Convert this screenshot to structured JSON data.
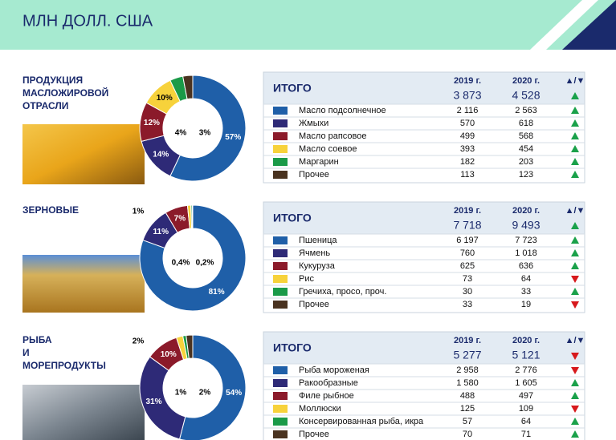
{
  "header": {
    "title": "МЛН ДОЛЛ. США"
  },
  "sections": [
    {
      "title": "ПРОДУКЦИЯ МАСЛОЖИРОВОЙ ОТРАСЛИ",
      "donut": {
        "slices": [
          {
            "value": 57,
            "label": "57%",
            "color": "#1f5fa8"
          },
          {
            "value": 14,
            "label": "14%",
            "color": "#2e2a77"
          },
          {
            "value": 12,
            "label": "12%",
            "color": "#8b1a2a"
          },
          {
            "value": 10,
            "label": "10%",
            "color": "#f7d23b"
          },
          {
            "value": 4,
            "label": "4%",
            "color": "#1a9a48"
          },
          {
            "value": 3,
            "label": "3%",
            "color": "#4a3320"
          }
        ]
      },
      "table": {
        "total_label": "ИТОГО",
        "col_2019": "2019 г.",
        "col_2020": "2020 г.",
        "trend_header": "▲/▼",
        "total_2019": "3 873",
        "total_2020": "4 528",
        "total_trend": "up",
        "rows": [
          {
            "color": "#1f5fa8",
            "name": "Масло подсолнечное",
            "v2019": "2 116",
            "v2020": "2 563",
            "trend": "up"
          },
          {
            "color": "#2e2a77",
            "name": "Жмыхи",
            "v2019": "570",
            "v2020": "618",
            "trend": "up"
          },
          {
            "color": "#8b1a2a",
            "name": "Масло рапсовое",
            "v2019": "499",
            "v2020": "568",
            "trend": "up"
          },
          {
            "color": "#f7d23b",
            "name": "Масло соевое",
            "v2019": "393",
            "v2020": "454",
            "trend": "up"
          },
          {
            "color": "#1a9a48",
            "name": "Маргарин",
            "v2019": "182",
            "v2020": "203",
            "trend": "up"
          },
          {
            "color": "#4a3320",
            "name": "Прочее",
            "v2019": "113",
            "v2020": "123",
            "trend": "up"
          }
        ]
      }
    },
    {
      "title": "ЗЕРНОВЫЕ",
      "donut": {
        "slices": [
          {
            "value": 81,
            "label": "81%",
            "color": "#1f5fa8"
          },
          {
            "value": 11,
            "label": "11%",
            "color": "#2e2a77"
          },
          {
            "value": 7,
            "label": "7%",
            "color": "#8b1a2a"
          },
          {
            "value": 1,
            "label": "1%",
            "color": "#f7d23b"
          },
          {
            "value": 0.4,
            "label": "0,4%",
            "color": "#1a9a48"
          },
          {
            "value": 0.2,
            "label": "0,2%",
            "color": "#4a3320"
          }
        ]
      },
      "table": {
        "total_label": "ИТОГО",
        "col_2019": "2019 г.",
        "col_2020": "2020 г.",
        "trend_header": "▲/▼",
        "total_2019": "7 718",
        "total_2020": "9 493",
        "total_trend": "up",
        "rows": [
          {
            "color": "#1f5fa8",
            "name": "Пшеница",
            "v2019": "6 197",
            "v2020": "7 723",
            "trend": "up"
          },
          {
            "color": "#2e2a77",
            "name": "Ячмень",
            "v2019": "760",
            "v2020": "1 018",
            "trend": "up"
          },
          {
            "color": "#8b1a2a",
            "name": "Кукуруза",
            "v2019": "625",
            "v2020": "636",
            "trend": "up"
          },
          {
            "color": "#f7d23b",
            "name": "Рис",
            "v2019": "73",
            "v2020": "64",
            "trend": "down"
          },
          {
            "color": "#1a9a48",
            "name": "Гречиха, просо, проч.",
            "v2019": "30",
            "v2020": "33",
            "trend": "up"
          },
          {
            "color": "#4a3320",
            "name": "Прочее",
            "v2019": "33",
            "v2020": "19",
            "trend": "down"
          }
        ]
      }
    },
    {
      "title": "РЫБА И МОРЕПРОДУКТЫ",
      "donut": {
        "slices": [
          {
            "value": 54,
            "label": "54%",
            "color": "#1f5fa8"
          },
          {
            "value": 31,
            "label": "31%",
            "color": "#2e2a77"
          },
          {
            "value": 10,
            "label": "10%",
            "color": "#8b1a2a"
          },
          {
            "value": 2,
            "label": "2%",
            "color": "#f7d23b"
          },
          {
            "value": 1,
            "label": "1%",
            "color": "#1a9a48"
          },
          {
            "value": 2,
            "label": "2%",
            "color": "#4a3320"
          }
        ]
      },
      "table": {
        "total_label": "ИТОГО",
        "col_2019": "2019 г.",
        "col_2020": "2020 г.",
        "trend_header": "▲/▼",
        "total_2019": "5 277",
        "total_2020": "5 121",
        "total_trend": "down",
        "rows": [
          {
            "color": "#1f5fa8",
            "name": "Рыба мороженая",
            "v2019": "2 958",
            "v2020": "2 776",
            "trend": "down"
          },
          {
            "color": "#2e2a77",
            "name": "Ракообразные",
            "v2019": "1 580",
            "v2020": "1 605",
            "trend": "up"
          },
          {
            "color": "#8b1a2a",
            "name": "Филе рыбное",
            "v2019": "488",
            "v2020": "497",
            "trend": "up"
          },
          {
            "color": "#f7d23b",
            "name": "Моллюски",
            "v2019": "125",
            "v2020": "109",
            "trend": "down"
          },
          {
            "color": "#1a9a48",
            "name": "Консервированная рыба, икра",
            "v2019": "57",
            "v2020": "64",
            "trend": "up"
          },
          {
            "color": "#4a3320",
            "name": "Прочее",
            "v2019": "70",
            "v2020": "71",
            "trend": "up"
          }
        ]
      }
    }
  ]
}
